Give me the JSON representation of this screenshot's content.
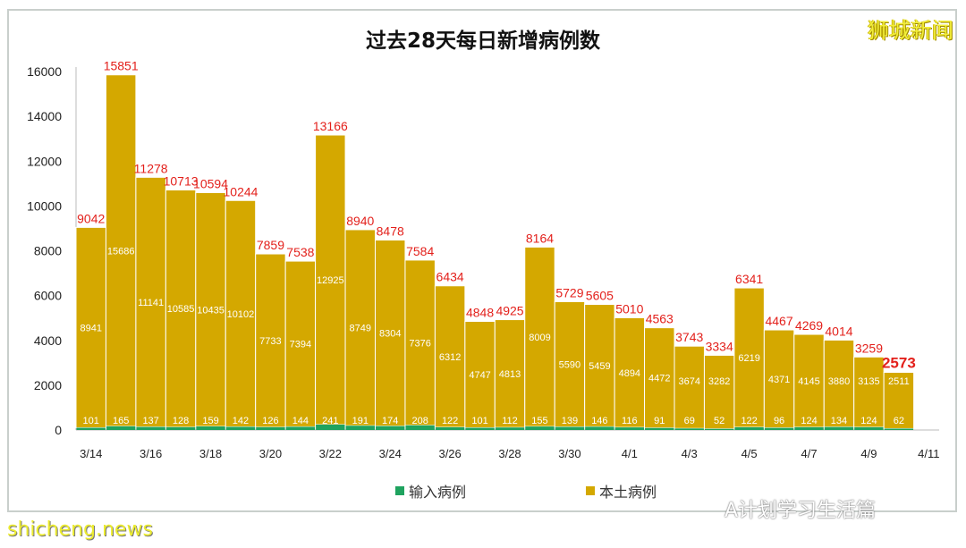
{
  "brand": "狮城新闻",
  "watermark": "A计划学习生活篇",
  "source_watermark": "shicheng.news",
  "colors": {
    "local": "#D4A800",
    "imported": "#1FA35F",
    "total_label": "#E3211C"
  },
  "chart_data": {
    "type": "bar",
    "stacked": true,
    "title": "过去28天每日新增病例数",
    "categories": [
      "3/14",
      "3/15",
      "3/16",
      "3/17",
      "3/18",
      "3/19",
      "3/20",
      "3/21",
      "3/22",
      "3/23",
      "3/24",
      "3/25",
      "3/26",
      "3/27",
      "3/28",
      "3/29",
      "3/30",
      "3/31",
      "4/1",
      "4/2",
      "4/3",
      "4/4",
      "4/5",
      "4/6",
      "4/7",
      "4/8",
      "4/9",
      "4/10"
    ],
    "x_tick_labels": [
      "3/14",
      "3/16",
      "3/18",
      "3/20",
      "3/22",
      "3/24",
      "3/26",
      "3/28",
      "3/30",
      "4/1",
      "4/3",
      "4/5",
      "4/7",
      "4/9",
      "4/11"
    ],
    "series": [
      {
        "name": "输入病例",
        "values": [
          101,
          165,
          137,
          128,
          159,
          142,
          126,
          144,
          241,
          191,
          174,
          208,
          122,
          101,
          112,
          155,
          139,
          146,
          116,
          91,
          69,
          52,
          122,
          96,
          124,
          134,
          124,
          62
        ]
      },
      {
        "name": "本土病例",
        "values": [
          8941,
          15686,
          11141,
          10585,
          10435,
          10102,
          7733,
          7394,
          12925,
          8749,
          8304,
          7376,
          6312,
          4747,
          4813,
          8009,
          5590,
          5459,
          4894,
          4472,
          3674,
          3282,
          6219,
          4371,
          4145,
          3880,
          3135,
          2511
        ]
      }
    ],
    "totals": [
      9042,
      15851,
      11278,
      10713,
      10594,
      10244,
      7859,
      7538,
      13166,
      8940,
      8478,
      7584,
      6434,
      4848,
      4925,
      8164,
      5729,
      5605,
      5010,
      4563,
      3743,
      3334,
      6341,
      4467,
      4269,
      4014,
      3259,
      2573
    ],
    "ylim": [
      0,
      16000
    ],
    "y_ticks": [
      0,
      2000,
      4000,
      6000,
      8000,
      10000,
      12000,
      14000,
      16000
    ],
    "grid": false,
    "legend": "bottom"
  }
}
